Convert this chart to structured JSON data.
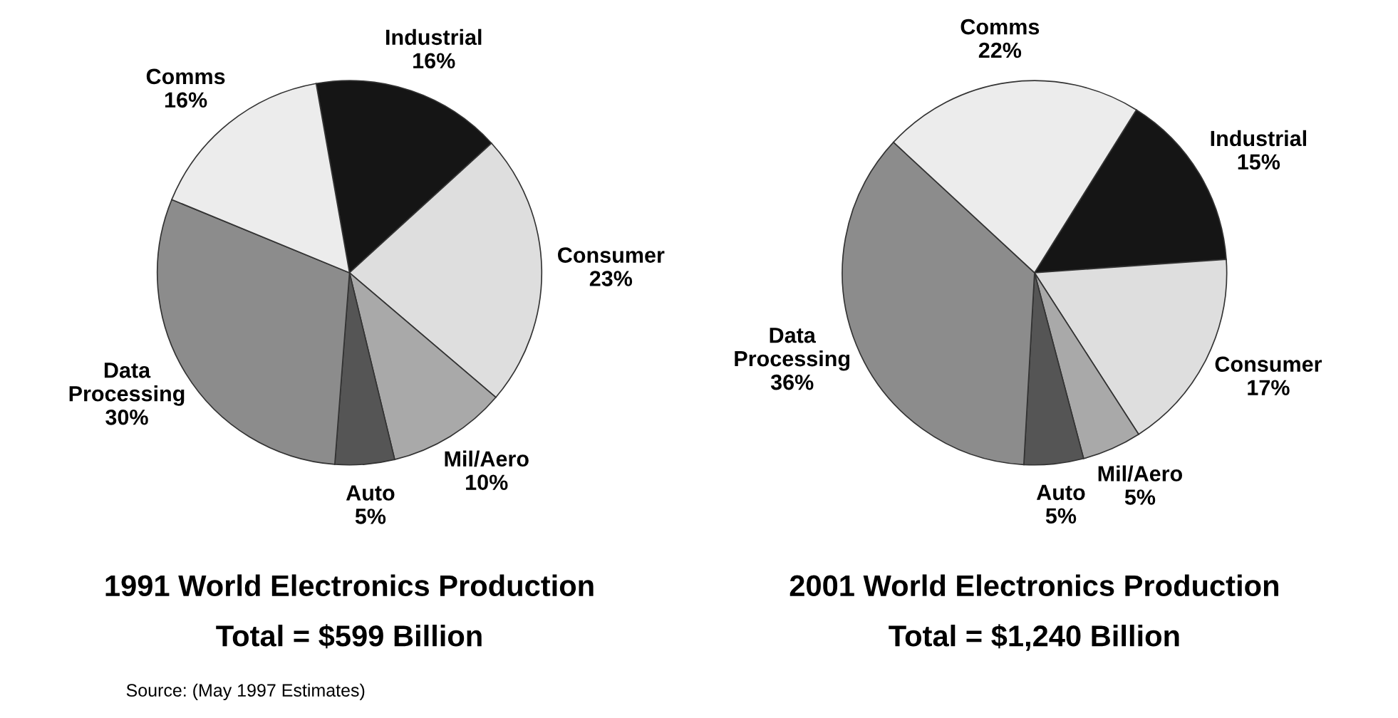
{
  "chart_data": [
    {
      "type": "pie",
      "title": "1991 World Electronics Production",
      "subtitle": "Total = $599 Billion",
      "categories": [
        "Industrial",
        "Consumer",
        "Mil/Aero",
        "Auto",
        "Data Processing",
        "Comms"
      ],
      "values": [
        16,
        23,
        10,
        5,
        30,
        16
      ],
      "value_labels": [
        "16%",
        "23%",
        "10%",
        "5%",
        "30%",
        "16%"
      ],
      "colors": [
        "#151515",
        "#dedede",
        "#a9a9a9",
        "#555555",
        "#8c8c8c",
        "#ececec"
      ],
      "annotations": [
        "Source: (May 1997 Estimates)"
      ]
    },
    {
      "type": "pie",
      "title": "2001 World Electronics Production",
      "subtitle": "Total = $1,240 Billion",
      "categories": [
        "Industrial",
        "Consumer",
        "Mil/Aero",
        "Auto",
        "Data Processing",
        "Comms"
      ],
      "values": [
        15,
        17,
        5,
        5,
        36,
        22
      ],
      "value_labels": [
        "15%",
        "17%",
        "5%",
        "5%",
        "36%",
        "22%"
      ],
      "colors": [
        "#151515",
        "#dedede",
        "#a9a9a9",
        "#555555",
        "#8c8c8c",
        "#ececec"
      ]
    }
  ]
}
